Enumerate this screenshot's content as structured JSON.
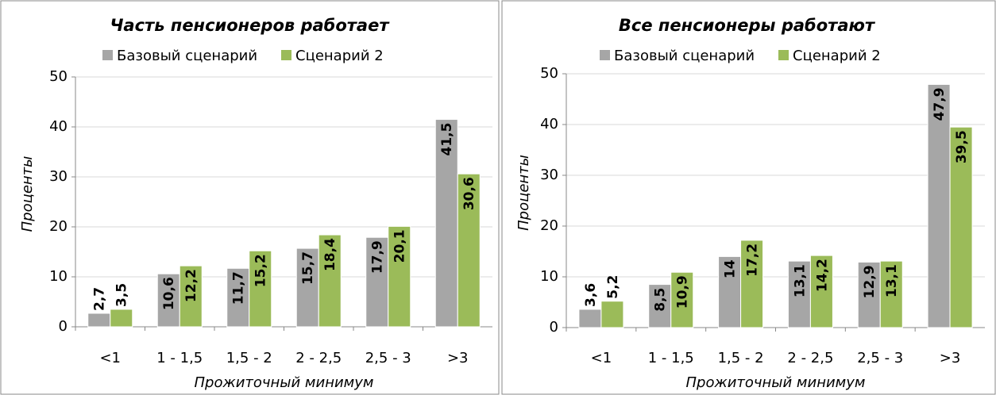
{
  "chart_data": [
    {
      "type": "bar",
      "title": "Часть пенсионеров работает",
      "x_label": "Прожиточный минимум",
      "y_label": "Проценты",
      "categories": [
        "<1",
        "1 - 1,5",
        "1,5 - 2",
        "2 - 2,5",
        "2,5 - 3",
        ">3"
      ],
      "series": [
        {
          "name": "Базовый сценарий",
          "color": "#a6a6a6",
          "values": [
            2.7,
            10.6,
            11.7,
            15.7,
            17.9,
            41.5
          ],
          "value_labels": [
            "2,7",
            "10,6",
            "11,7",
            "15,7",
            "17,9",
            "41,5"
          ]
        },
        {
          "name": "Сценарий 2",
          "color": "#9bbb59",
          "values": [
            3.5,
            12.2,
            15.2,
            18.4,
            20.1,
            30.6
          ],
          "value_labels": [
            "3,5",
            "12,2",
            "15,2",
            "18,4",
            "20,1",
            "30,6"
          ]
        }
      ],
      "ylim": [
        0,
        50
      ],
      "yticks": [
        0,
        10,
        20,
        30,
        40,
        50
      ],
      "grid": true
    },
    {
      "type": "bar",
      "title": "Все пенсионеры работают",
      "x_label": "Прожиточный минимум",
      "y_label": "Проценты",
      "categories": [
        "<1",
        "1 - 1,5",
        "1,5 - 2",
        "2 - 2,5",
        "2,5 - 3",
        ">3"
      ],
      "series": [
        {
          "name": "Базовый сценарий",
          "color": "#a6a6a6",
          "values": [
            3.6,
            8.5,
            14,
            13.1,
            12.9,
            47.9
          ],
          "value_labels": [
            "3,6",
            "8,5",
            "14",
            "13,1",
            "12,9",
            "47,9"
          ]
        },
        {
          "name": "Сценарий 2",
          "color": "#9bbb59",
          "values": [
            5.2,
            10.9,
            17.2,
            14.2,
            13.1,
            39.5
          ],
          "value_labels": [
            "5,2",
            "10,9",
            "17,2",
            "14,2",
            "13,1",
            "39,5"
          ]
        }
      ],
      "ylim": [
        0,
        50
      ],
      "yticks": [
        0,
        10,
        20,
        30,
        40,
        50
      ],
      "grid": true
    }
  ]
}
